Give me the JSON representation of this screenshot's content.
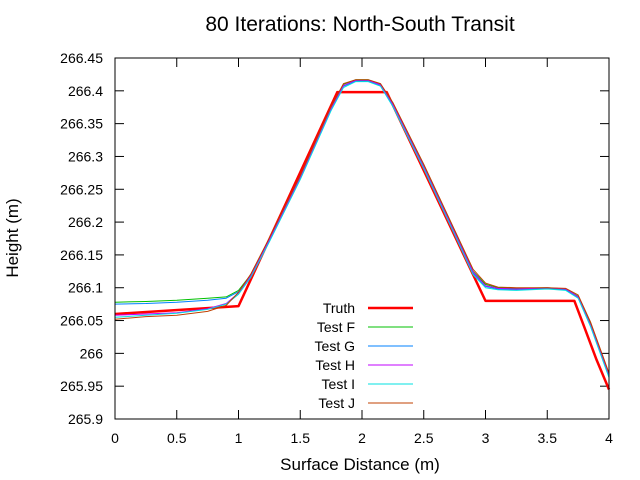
{
  "chart_data": {
    "type": "line",
    "title": "80 Iterations: North-South Transit",
    "xlabel": "Surface Distance (m)",
    "ylabel": "Height (m)",
    "xlim": [
      0,
      4
    ],
    "ylim": [
      265.9,
      266.45
    ],
    "xticks": [
      "0",
      "0.5",
      "1",
      "1.5",
      "2",
      "2.5",
      "3",
      "3.5",
      "4"
    ],
    "yticks": [
      "265.9",
      "265.95",
      "266",
      "266.05",
      "266.1",
      "266.15",
      "266.2",
      "266.25",
      "266.3",
      "266.35",
      "266.4",
      "266.45"
    ],
    "grid": false,
    "legend_position": "bottom-center",
    "series": [
      {
        "name": "Truth",
        "color": "#ff0000",
        "x": [
          0,
          1.0,
          1.8,
          2.2,
          3.0,
          3.72,
          3.8,
          3.9,
          4.0
        ],
        "y": [
          266.06,
          266.072,
          266.398,
          266.398,
          266.08,
          266.08,
          266.04,
          265.99,
          265.945
        ]
      },
      {
        "name": "Test F",
        "color": "#00c000",
        "x": [
          0,
          0.25,
          0.5,
          0.75,
          0.9,
          1.0,
          1.1,
          1.25,
          1.5,
          1.75,
          1.85,
          1.95,
          2.05,
          2.15,
          2.25,
          2.5,
          2.75,
          2.9,
          3.0,
          3.1,
          3.25,
          3.5,
          3.65,
          3.75,
          3.85,
          4.0
        ],
        "y": [
          266.078,
          266.079,
          266.081,
          266.084,
          266.086,
          266.096,
          266.12,
          266.175,
          266.27,
          266.375,
          266.41,
          266.417,
          266.417,
          266.41,
          266.38,
          266.285,
          266.185,
          266.125,
          266.105,
          266.1,
          266.099,
          266.1,
          266.098,
          266.087,
          266.045,
          265.968
        ]
      },
      {
        "name": "Test G",
        "color": "#0080ff",
        "x": [
          0,
          0.25,
          0.5,
          0.75,
          0.9,
          1.0,
          1.1,
          1.25,
          1.5,
          1.75,
          1.85,
          1.95,
          2.05,
          2.15,
          2.25,
          2.5,
          2.75,
          2.9,
          3.0,
          3.1,
          3.25,
          3.5,
          3.65,
          3.75,
          3.85,
          4.0
        ],
        "y": [
          266.075,
          266.076,
          266.078,
          266.081,
          266.084,
          266.094,
          266.118,
          266.172,
          266.267,
          266.372,
          266.407,
          266.415,
          266.415,
          266.408,
          266.378,
          266.283,
          266.183,
          266.122,
          266.102,
          266.098,
          266.097,
          266.099,
          266.097,
          266.085,
          266.042,
          265.965
        ]
      },
      {
        "name": "Test H",
        "color": "#c000ff",
        "x": [
          0,
          0.25,
          0.5,
          0.75,
          0.9,
          1.0,
          1.1,
          1.25,
          1.5,
          1.75,
          1.85,
          1.95,
          2.05,
          2.15,
          2.25,
          2.5,
          2.75,
          2.9,
          3.0,
          3.1,
          3.25,
          3.5,
          3.65,
          3.75,
          3.85,
          4.0
        ],
        "y": [
          266.058,
          266.06,
          266.062,
          266.068,
          266.076,
          266.092,
          266.118,
          266.173,
          266.268,
          266.373,
          266.408,
          266.416,
          266.416,
          266.409,
          266.379,
          266.284,
          266.184,
          266.124,
          266.103,
          266.099,
          266.098,
          266.1,
          266.098,
          266.086,
          266.043,
          265.966
        ]
      },
      {
        "name": "Test I",
        "color": "#00e0e0",
        "x": [
          0,
          0.25,
          0.5,
          0.75,
          0.9,
          1.0,
          1.1,
          1.25,
          1.5,
          1.75,
          1.85,
          1.95,
          2.05,
          2.15,
          2.25,
          2.5,
          2.75,
          2.9,
          3.0,
          3.1,
          3.25,
          3.5,
          3.65,
          3.75,
          3.85,
          4.0
        ],
        "y": [
          266.055,
          266.058,
          266.061,
          266.067,
          266.075,
          266.09,
          266.116,
          266.17,
          266.265,
          266.37,
          266.405,
          266.414,
          266.414,
          266.407,
          266.376,
          266.281,
          266.181,
          266.12,
          266.1,
          266.097,
          266.096,
          266.098,
          266.096,
          266.084,
          266.041,
          265.963
        ]
      },
      {
        "name": "Test J",
        "color": "#c04000",
        "x": [
          0,
          0.25,
          0.5,
          0.75,
          0.9,
          1.0,
          1.1,
          1.25,
          1.5,
          1.75,
          1.85,
          1.95,
          2.05,
          2.15,
          2.25,
          2.5,
          2.75,
          2.9,
          3.0,
          3.1,
          3.25,
          3.5,
          3.65,
          3.75,
          3.85,
          4.0
        ],
        "y": [
          266.052,
          266.056,
          266.058,
          266.064,
          266.073,
          266.093,
          266.121,
          266.176,
          266.271,
          266.376,
          266.411,
          266.417,
          266.417,
          266.411,
          266.382,
          266.288,
          266.188,
          266.128,
          266.107,
          266.101,
          266.1,
          266.1,
          266.099,
          266.089,
          266.048,
          265.97
        ]
      }
    ]
  }
}
